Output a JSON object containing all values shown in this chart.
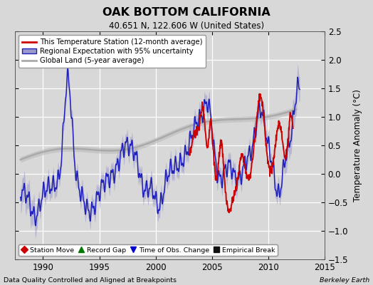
{
  "title": "OAK BOTTOM CALIFORNIA",
  "subtitle": "40.651 N, 122.606 W (United States)",
  "ylabel": "Temperature Anomaly (°C)",
  "xlabel_left": "Data Quality Controlled and Aligned at Breakpoints",
  "xlabel_right": "Berkeley Earth",
  "ylim": [
    -1.5,
    2.5
  ],
  "xlim": [
    1987.5,
    2015.0
  ],
  "xticks": [
    1990,
    1995,
    2000,
    2005,
    2010,
    2015
  ],
  "yticks": [
    -1.5,
    -1.0,
    -0.5,
    0.0,
    0.5,
    1.0,
    1.5,
    2.0,
    2.5
  ],
  "bg_color": "#d8d8d8",
  "plot_bg_color": "#d8d8d8",
  "grid_color": "#ffffff",
  "red_color": "#cc0000",
  "blue_color": "#2020bb",
  "blue_fill_color": "#9999cc",
  "gray_color": "#aaaaaa",
  "legend1_label": "This Temperature Station (12-month average)",
  "legend2_label": "Regional Expectation with 95% uncertainty",
  "legend3_label": "Global Land (5-year average)",
  "bottom_legend": [
    {
      "marker": "D",
      "color": "#cc0000",
      "label": "Station Move"
    },
    {
      "marker": "^",
      "color": "#007700",
      "label": "Record Gap"
    },
    {
      "marker": "v",
      "color": "#0000cc",
      "label": "Time of Obs. Change"
    },
    {
      "marker": "s",
      "color": "#111111",
      "label": "Empirical Break"
    }
  ]
}
